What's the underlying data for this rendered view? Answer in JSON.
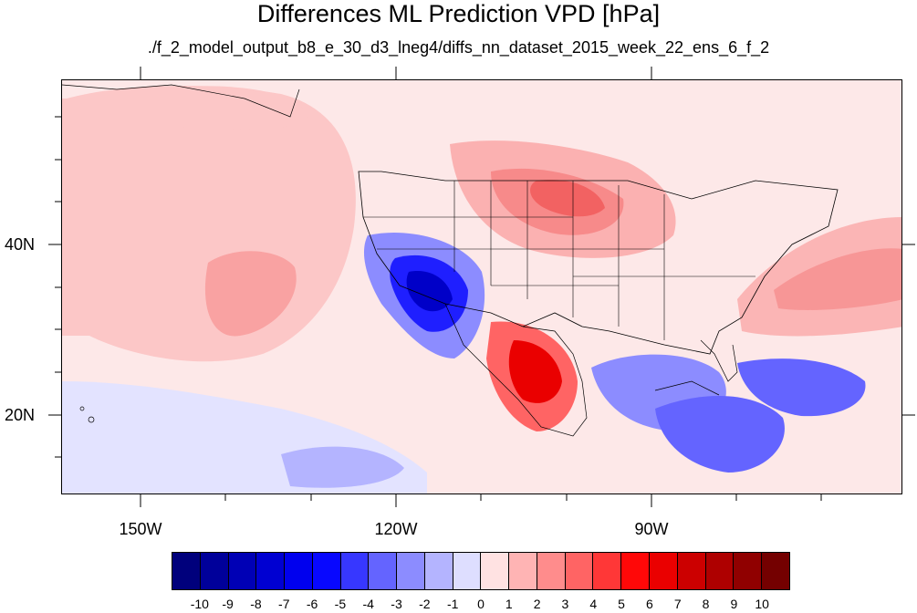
{
  "title": "Differences ML Prediction VPD [hPa]",
  "subtitle": "./f_2_model_output_b8_e_30_d3_lneg4/diffs_nn_dataset_2015_week_22_ens_6_f_2",
  "map": {
    "lon_labels": [
      "150W",
      "120W",
      "90W"
    ],
    "lat_labels": [
      "40N",
      "20N"
    ],
    "background_color": "#fde8e8"
  },
  "colorbar": {
    "labels": [
      "-10",
      "-9",
      "-8",
      "-7",
      "-6",
      "-5",
      "-4",
      "-3",
      "-2",
      "-1",
      "0",
      "1",
      "2",
      "3",
      "4",
      "5",
      "6",
      "7",
      "8",
      "9",
      "10"
    ],
    "colors": [
      "#00007c",
      "#00009a",
      "#0000b5",
      "#0000d2",
      "#0000ee",
      "#0808ff",
      "#3737ff",
      "#6464ff",
      "#8c8cff",
      "#b4b4ff",
      "#dedeff",
      "#ffe2e2",
      "#ffb4b4",
      "#ff8c8c",
      "#ff6464",
      "#ff3737",
      "#ff0808",
      "#ea0000",
      "#cc0000",
      "#ae0000",
      "#900000",
      "#740000"
    ]
  }
}
